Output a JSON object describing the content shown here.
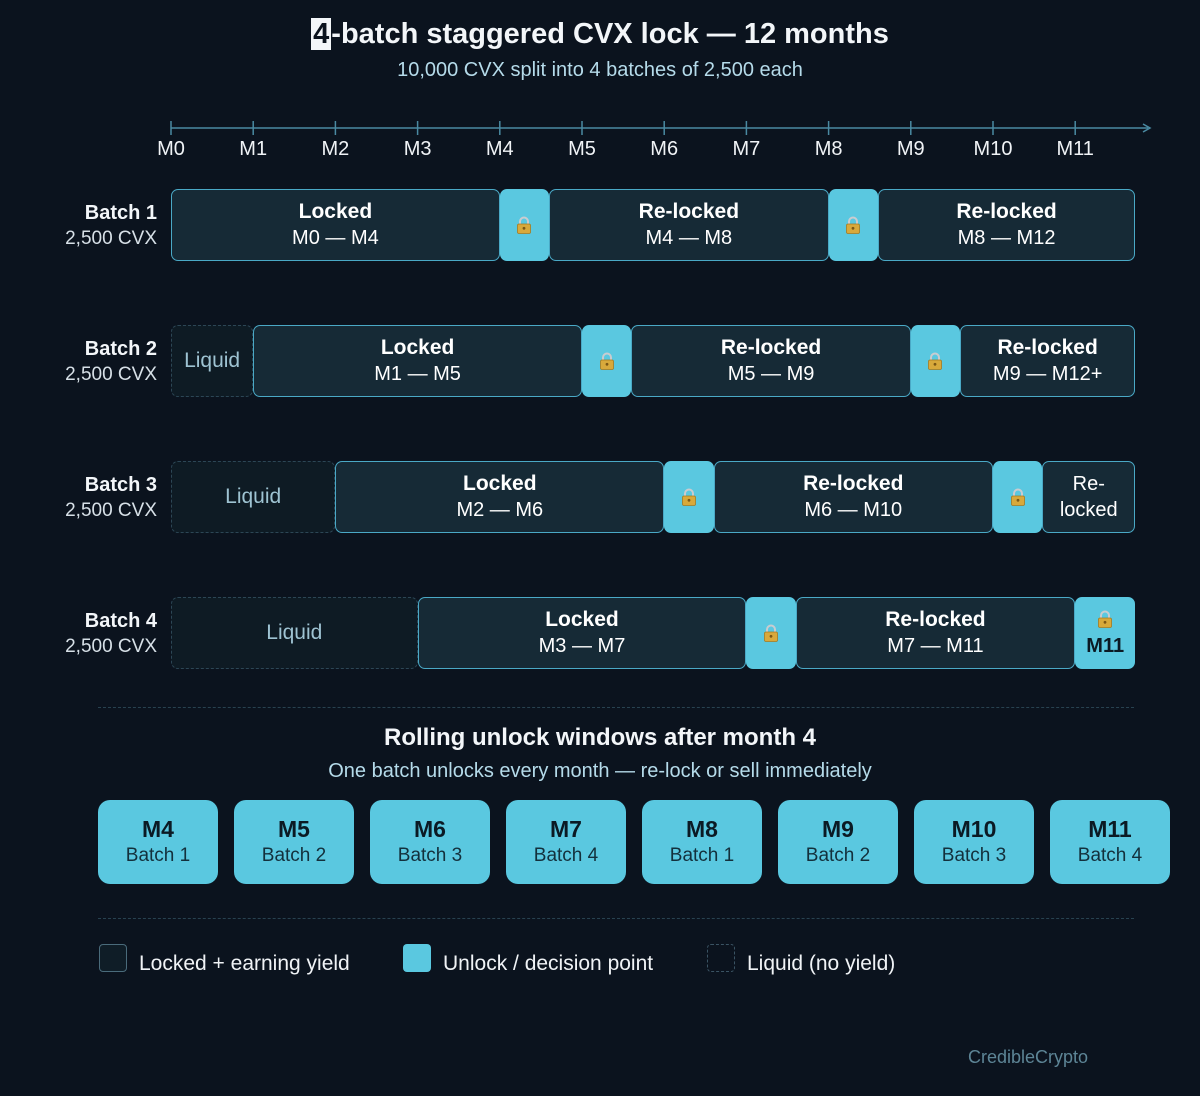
{
  "header": {
    "title_digit": "4",
    "title_rest": "-batch staggered CVX lock — 12 months",
    "subtitle": "10,000 CVX split into 4 batches of 2,500 each"
  },
  "timeline": {
    "months": [
      "M0",
      "M1",
      "M2",
      "M3",
      "M4",
      "M5",
      "M6",
      "M7",
      "M8",
      "M9",
      "M10",
      "M11"
    ]
  },
  "batches": [
    {
      "name": "Batch 1",
      "amount": "2,500 CVX",
      "segments": [
        {
          "kind": "locked",
          "start": 0,
          "end": 4,
          "title": "Locked",
          "range": "M0 — M4"
        },
        {
          "kind": "unlock",
          "start": 4,
          "end": 4.6
        },
        {
          "kind": "locked",
          "start": 4.6,
          "end": 8,
          "title": "Re-locked",
          "range": "M4 — M8"
        },
        {
          "kind": "unlock",
          "start": 8,
          "end": 8.6
        },
        {
          "kind": "locked",
          "start": 8.6,
          "end": 11.73,
          "title": "Re-locked",
          "range": "M8 — M12"
        }
      ]
    },
    {
      "name": "Batch 2",
      "amount": "2,500 CVX",
      "segments": [
        {
          "kind": "liquid",
          "start": 0,
          "end": 1,
          "label": "Liquid"
        },
        {
          "kind": "locked",
          "start": 1,
          "end": 5,
          "title": "Locked",
          "range": "M1 — M5"
        },
        {
          "kind": "unlock",
          "start": 5,
          "end": 5.6
        },
        {
          "kind": "locked",
          "start": 5.6,
          "end": 9,
          "title": "Re-locked",
          "range": "M5 — M9"
        },
        {
          "kind": "unlock",
          "start": 9,
          "end": 9.6
        },
        {
          "kind": "locked",
          "start": 9.6,
          "end": 11.73,
          "title": "Re-locked",
          "range": "M9 — M12+"
        }
      ]
    },
    {
      "name": "Batch 3",
      "amount": "2,500 CVX",
      "segments": [
        {
          "kind": "liquid",
          "start": 0,
          "end": 2,
          "label": "Liquid"
        },
        {
          "kind": "locked",
          "start": 2,
          "end": 6,
          "title": "Locked",
          "range": "M2 — M6"
        },
        {
          "kind": "unlock",
          "start": 6,
          "end": 6.6
        },
        {
          "kind": "locked",
          "start": 6.6,
          "end": 10,
          "title": "Re-locked",
          "range": "M6 — M10"
        },
        {
          "kind": "unlock",
          "start": 10,
          "end": 10.6
        },
        {
          "kind": "locked",
          "start": 10.6,
          "end": 11.73,
          "title": "",
          "range": "",
          "lines": [
            "Re-",
            "locked"
          ]
        }
      ]
    },
    {
      "name": "Batch 4",
      "amount": "2,500 CVX",
      "segments": [
        {
          "kind": "liquid",
          "start": 0,
          "end": 3,
          "label": "Liquid"
        },
        {
          "kind": "locked",
          "start": 3,
          "end": 7,
          "title": "Locked",
          "range": "M3 — M7"
        },
        {
          "kind": "unlock",
          "start": 7,
          "end": 7.6
        },
        {
          "kind": "locked",
          "start": 7.6,
          "end": 11,
          "title": "Re-locked",
          "range": "M7 — M11"
        },
        {
          "kind": "unlock",
          "start": 11,
          "end": 11.73,
          "label": "M11"
        }
      ]
    }
  ],
  "rolling": {
    "title": "Rolling unlock windows after month 4",
    "subtitle": "One batch unlocks every month — re-lock or sell immediately",
    "windows": [
      {
        "month": "M4",
        "batch": "Batch 1"
      },
      {
        "month": "M5",
        "batch": "Batch 2"
      },
      {
        "month": "M6",
        "batch": "Batch 3"
      },
      {
        "month": "M7",
        "batch": "Batch 4"
      },
      {
        "month": "M8",
        "batch": "Batch 1"
      },
      {
        "month": "M9",
        "batch": "Batch 2"
      },
      {
        "month": "M10",
        "batch": "Batch 3"
      },
      {
        "month": "M11",
        "batch": "Batch 4"
      }
    ]
  },
  "legend": {
    "locked": "Locked + earning yield",
    "unlock": "Unlock / decision point",
    "liquid": "Liquid (no yield)"
  },
  "credit": "CredibleCrypto",
  "colors": {
    "background": "#0b131e",
    "locked_fill": "#162a36",
    "locked_border": "#4aa9c6",
    "unlock": "#5ac8e0",
    "liquid_border": "#2c4655"
  },
  "icons": {
    "unlock_marker": "padlock-icon"
  }
}
